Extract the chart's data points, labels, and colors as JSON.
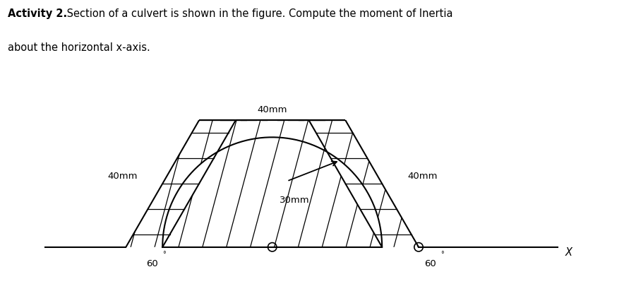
{
  "title_bold": "Activity 2.",
  "title_normal": " Section of a culvert is shown in the figure. Compute the moment of Inertia",
  "title_line2": "about the horizontal x-axis.",
  "label_top": "40mm",
  "label_left": "40mm",
  "label_right": "40mm",
  "label_radius": "30mm",
  "label_angle_left": "60",
  "label_angle_right": "60",
  "label_x": "X",
  "bg_color": "#ffffff",
  "line_color": "#000000",
  "figure_width": 9.01,
  "figure_height": 4.12
}
